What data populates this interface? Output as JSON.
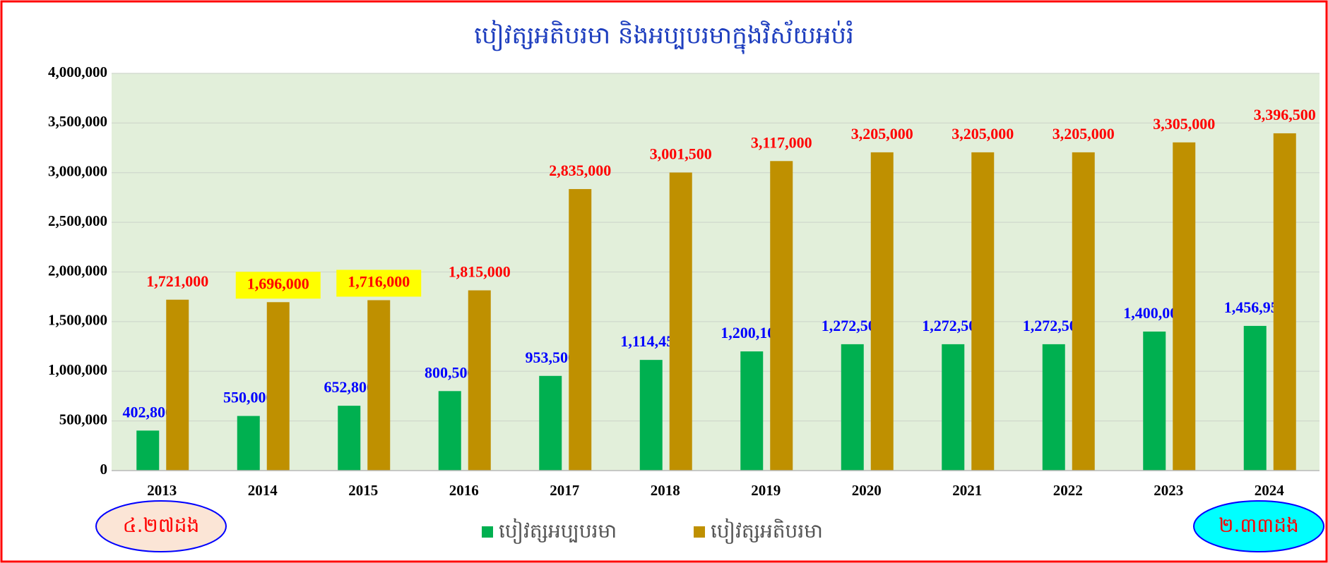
{
  "chart_data": {
    "type": "bar",
    "title": "បៀវត្សអតិបរមា និងអប្បបរមាក្នុងវិស័យអប់រំ",
    "categories": [
      "2013",
      "2014",
      "2015",
      "2016",
      "2017",
      "2018",
      "2019",
      "2020",
      "2021",
      "2022",
      "2023",
      "2024"
    ],
    "series": [
      {
        "name": "បៀវត្សអប្បបរមា",
        "color": "#00b050",
        "label_color": "#0000ff",
        "values": [
          402800,
          550000,
          652800,
          800500,
          953500,
          1114450,
          1200100,
          1272500,
          1272500,
          1272500,
          1400000,
          1456950
        ],
        "value_labels": [
          "402,800",
          "550,000",
          "652,800",
          "800,500",
          "953,500",
          "1,114,450",
          "1,200,100",
          "1,272,500",
          "1,272,500",
          "1,272,500",
          "1,400,000",
          "1,456,950"
        ],
        "label_highlight": [
          false,
          false,
          false,
          false,
          false,
          false,
          false,
          false,
          false,
          false,
          false,
          false
        ]
      },
      {
        "name": "បៀវត្សអតិបរមា",
        "color": "#bf9000",
        "label_color": "#ff0000",
        "values": [
          1721000,
          1696000,
          1716000,
          1815000,
          2835000,
          3001500,
          3117000,
          3205000,
          3205000,
          3205000,
          3305000,
          3396500
        ],
        "value_labels": [
          "1,721,000",
          "1,696,000",
          "1,716,000",
          "1,815,000",
          "2,835,000",
          "3,001,500",
          "3,117,000",
          "3,205,000",
          "3,205,000",
          "3,205,000",
          "3,305,000",
          "3,396,500"
        ],
        "label_highlight": [
          false,
          true,
          true,
          false,
          false,
          false,
          false,
          false,
          false,
          false,
          false,
          false
        ]
      }
    ],
    "ylim": [
      0,
      4000000
    ],
    "yticks": [
      0,
      {
        "value": 500000,
        "label": "500,000"
      },
      {
        "value": 1000000,
        "label": "1,000,000"
      },
      {
        "value": 1500000,
        "label": "1,500,000"
      },
      {
        "value": 2000000,
        "label": "2,000,000"
      },
      {
        "value": 2500000,
        "label": "2,500,000"
      },
      {
        "value": 3000000,
        "label": "3,000,000"
      },
      {
        "value": 3500000,
        "label": "3,500,000"
      },
      {
        "value": 4000000,
        "label": "4,000,000"
      }
    ],
    "grid": true,
    "legend": "bottom",
    "annotations": [
      "៤.២៧ដង",
      "២.៣៣ដង"
    ]
  }
}
